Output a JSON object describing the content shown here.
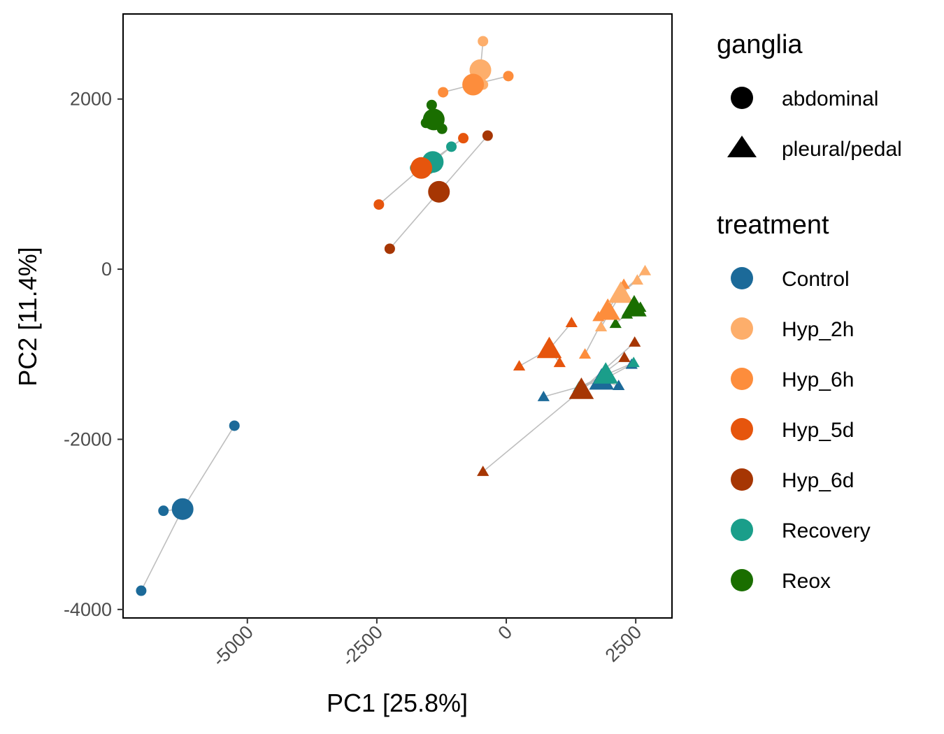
{
  "chart_data": {
    "type": "scatter",
    "title": "",
    "xlabel": "PC1 [25.8%]",
    "ylabel": "PC2 [11.4%]",
    "xlim": [
      -7400,
      3200
    ],
    "ylim": [
      -4100,
      3000
    ],
    "xticks": [
      -5000,
      -2500,
      0,
      2500
    ],
    "xtick_labels": [
      "-5000",
      "-2500",
      "0",
      "2500"
    ],
    "yticks": [
      -4000,
      -2000,
      0,
      2000
    ],
    "ytick_labels": [
      "-4000",
      "-2000",
      "0",
      "2000"
    ],
    "grid": false,
    "legend_position": "right",
    "colors": {
      "Control": "#1c6a99",
      "Hyp_2h": "#fdae6b",
      "Hyp_6h": "#fd8d3c",
      "Hyp_5d": "#e6550d",
      "Hyp_6d": "#a63603",
      "Recovery": "#1a9e8a",
      "Reox": "#1a6e00"
    },
    "connector_color": "#bebebe",
    "legend": {
      "ganglia": {
        "title": "ganglia",
        "entries": [
          {
            "label": "abdominal",
            "shape": "circle"
          },
          {
            "label": "pleural/pedal",
            "shape": "triangle"
          }
        ]
      },
      "treatment": {
        "title": "treatment",
        "entries": [
          "Control",
          "Hyp_2h",
          "Hyp_6h",
          "Hyp_5d",
          "Hyp_6d",
          "Recovery",
          "Reox"
        ]
      }
    },
    "groups": [
      {
        "treatment": "Control",
        "ganglia": "abdominal",
        "centroid": [
          -6250,
          -2820
        ],
        "samples": [
          [
            -5250,
            -1840
          ],
          [
            -6620,
            -2840
          ],
          [
            -7050,
            -3780
          ]
        ]
      },
      {
        "treatment": "Hyp_2h",
        "ganglia": "abdominal",
        "centroid": [
          -500,
          2340
        ],
        "samples": [
          [
            -450,
            2680
          ],
          [
            -580,
            2190
          ],
          [
            -450,
            2170
          ]
        ]
      },
      {
        "treatment": "Hyp_6h",
        "ganglia": "abdominal",
        "centroid": [
          -640,
          2170
        ],
        "samples": [
          [
            40,
            2270
          ],
          [
            -1220,
            2080
          ],
          [
            -560,
            2180
          ]
        ]
      },
      {
        "treatment": "Reox",
        "ganglia": "abdominal",
        "centroid": [
          -1400,
          1760
        ],
        "samples": [
          [
            -1440,
            1930
          ],
          [
            -1550,
            1720
          ],
          [
            -1240,
            1650
          ]
        ]
      },
      {
        "treatment": "Recovery",
        "ganglia": "abdominal",
        "centroid": [
          -1420,
          1260
        ],
        "samples": [
          [
            -1060,
            1440
          ],
          [
            -1760,
            1190
          ],
          [
            -1490,
            1180
          ]
        ]
      },
      {
        "treatment": "Hyp_5d",
        "ganglia": "abdominal",
        "centroid": [
          -1640,
          1190
        ],
        "samples": [
          [
            -2460,
            760
          ],
          [
            -830,
            1540
          ],
          [
            -1580,
            1220
          ]
        ]
      },
      {
        "treatment": "Hyp_6d",
        "ganglia": "abdominal",
        "centroid": [
          -1300,
          910
        ],
        "samples": [
          [
            -2250,
            240
          ],
          [
            -360,
            1570
          ]
        ]
      },
      {
        "treatment": "Control",
        "ganglia": "pleural/pedal",
        "centroid": [
          1840,
          -1310
        ],
        "samples": [
          [
            720,
            -1500
          ],
          [
            2170,
            -1370
          ],
          [
            2420,
            -1120
          ]
        ]
      },
      {
        "treatment": "Recovery",
        "ganglia": "pleural/pedal",
        "centroid": [
          1920,
          -1240
        ],
        "samples": [
          [
            1400,
            -1390
          ],
          [
            2460,
            -1100
          ]
        ]
      },
      {
        "treatment": "Hyp_6d",
        "ganglia": "pleural/pedal",
        "centroid": [
          1450,
          -1420
        ],
        "samples": [
          [
            -450,
            -2380
          ],
          [
            2280,
            -1040
          ],
          [
            2480,
            -860
          ]
        ]
      },
      {
        "treatment": "Hyp_5d",
        "ganglia": "pleural/pedal",
        "centroid": [
          830,
          -940
        ],
        "samples": [
          [
            250,
            -1140
          ],
          [
            1260,
            -630
          ],
          [
            1030,
            -1100
          ]
        ]
      },
      {
        "treatment": "Hyp_6h",
        "ganglia": "pleural/pedal",
        "centroid": [
          1960,
          -490
        ],
        "samples": [
          [
            1520,
            -1000
          ],
          [
            1780,
            -560
          ],
          [
            2270,
            -180
          ]
        ]
      },
      {
        "treatment": "Hyp_2h",
        "ganglia": "pleural/pedal",
        "centroid": [
          2210,
          -290
        ],
        "samples": [
          [
            1830,
            -680
          ],
          [
            2530,
            -130
          ],
          [
            2680,
            -20
          ]
        ]
      },
      {
        "treatment": "Reox",
        "ganglia": "pleural/pedal",
        "centroid": [
          2470,
          -450
        ],
        "samples": [
          [
            2590,
            -450
          ],
          [
            2330,
            -530
          ],
          [
            2110,
            -640
          ]
        ]
      }
    ]
  }
}
